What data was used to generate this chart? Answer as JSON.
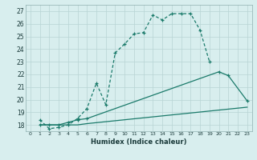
{
  "xlabel": "Humidex (Indice chaleur)",
  "background_color": "#d8eeee",
  "grid_color": "#b8d4d4",
  "line_color": "#1a7a6a",
  "xlim": [
    -0.5,
    23.5
  ],
  "ylim": [
    17.5,
    27.5
  ],
  "xticks": [
    0,
    1,
    2,
    3,
    4,
    5,
    6,
    7,
    8,
    9,
    10,
    11,
    12,
    13,
    14,
    15,
    16,
    17,
    18,
    19,
    20,
    21,
    22,
    23
  ],
  "yticks": [
    18,
    19,
    20,
    21,
    22,
    23,
    24,
    25,
    26,
    27
  ],
  "curve1_x": [
    1,
    2,
    3,
    4,
    5,
    6,
    7,
    8,
    9,
    10,
    11,
    12,
    13,
    14,
    15,
    16,
    17,
    18,
    19
  ],
  "curve1_y": [
    18.4,
    17.7,
    17.8,
    18.0,
    18.5,
    19.3,
    21.3,
    19.6,
    23.7,
    24.4,
    25.2,
    25.3,
    26.7,
    26.3,
    26.8,
    26.8,
    26.8,
    25.5,
    23.0
  ],
  "curve2_x": [
    1,
    2,
    3,
    4,
    5,
    6,
    20,
    21,
    23
  ],
  "curve2_y": [
    18.0,
    18.0,
    18.0,
    18.2,
    18.4,
    18.5,
    22.2,
    21.9,
    19.9
  ],
  "curve3_x": [
    1,
    2,
    3,
    4,
    5,
    6,
    23
  ],
  "curve3_y": [
    18.0,
    18.0,
    18.0,
    18.0,
    18.0,
    18.1,
    19.4
  ]
}
